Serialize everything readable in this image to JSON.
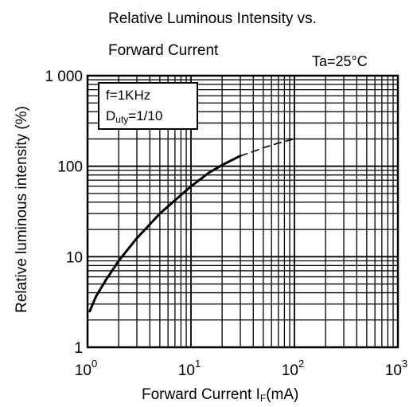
{
  "chart_data": {
    "type": "line",
    "title_line1": "Relative Luminous Intensity vs.",
    "title_line2": "Forward Current",
    "condition": "Ta=25°C",
    "xlabel": {
      "prefix": "Forward Current  I",
      "subscript": "F",
      "suffix": "(mA)"
    },
    "ylabel": "Relative luminous intensity (%)",
    "x_scale": "log",
    "y_scale": "log",
    "xlim": [
      1,
      1000
    ],
    "ylim": [
      1,
      1000
    ],
    "grid": true,
    "x_ticks": [
      {
        "base": "10",
        "exp": "0",
        "value": 1
      },
      {
        "base": "10",
        "exp": "1",
        "value": 10
      },
      {
        "base": "10",
        "exp": "2",
        "value": 100
      },
      {
        "base": "10",
        "exp": "3",
        "value": 1000
      }
    ],
    "y_ticks": [
      {
        "label": "1",
        "value": 1
      },
      {
        "label": "10",
        "value": 10
      },
      {
        "label": "100",
        "value": 100
      },
      {
        "label": "1 000",
        "value": 1000
      }
    ],
    "legend": {
      "line1": "f=1KHz",
      "line2_prefix": "D",
      "line2_sub": "uty",
      "line2_suffix": "=1/10",
      "placement": "top-left"
    },
    "series": [
      {
        "style": "solid",
        "x": [
          1.05,
          1.2,
          1.5,
          2,
          3,
          5,
          7,
          10,
          15,
          20,
          30
        ],
        "y": [
          2.5,
          3.6,
          5.5,
          9,
          16,
          30,
          42,
          60,
          85,
          103,
          130
        ]
      },
      {
        "style": "dashed",
        "x": [
          30,
          40,
          50,
          70,
          100
        ],
        "y": [
          130,
          145,
          160,
          180,
          200
        ]
      }
    ]
  }
}
